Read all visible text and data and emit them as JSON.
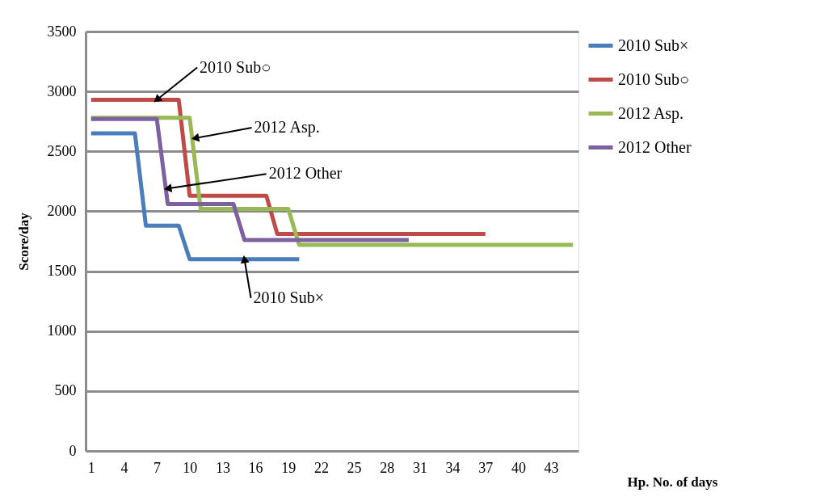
{
  "chart_data": {
    "type": "step",
    "xlabel": "Hp. No. of days",
    "ylabel": "Score/day",
    "xlim": [
      0.5,
      45.5
    ],
    "xticks": [
      1,
      4,
      7,
      10,
      13,
      16,
      19,
      22,
      25,
      28,
      31,
      34,
      37,
      40,
      43
    ],
    "ylim": [
      0,
      3500
    ],
    "yticks": [
      0,
      500,
      1000,
      1500,
      2000,
      2500,
      3000,
      3500
    ],
    "grid": "y",
    "legend": "right",
    "marker": "none",
    "line_style": "solid",
    "series": [
      {
        "name": "2010 Sub×",
        "color": "#4a7ebb",
        "x": [
          1,
          5,
          6,
          9,
          10,
          20
        ],
        "values": [
          2650,
          2650,
          1880,
          1880,
          1600,
          1600
        ]
      },
      {
        "name": "2010 Sub○",
        "color": "#be4b48",
        "x": [
          1,
          9,
          10,
          17,
          18,
          37
        ],
        "values": [
          2930,
          2930,
          2130,
          2130,
          1810,
          1810
        ]
      },
      {
        "name": "2012 Asp.",
        "color": "#98b954",
        "x": [
          1,
          10,
          11,
          19,
          20,
          45
        ],
        "values": [
          2780,
          2780,
          2020,
          2020,
          1720,
          1720
        ]
      },
      {
        "name": "2012 Other",
        "color": "#7d60a0",
        "x": [
          1,
          7,
          8,
          14,
          15,
          30
        ],
        "values": [
          2770,
          2770,
          2060,
          2060,
          1760,
          1760
        ]
      }
    ],
    "annotations": [
      {
        "text": "2010 Sub○",
        "x": 7,
        "y": 2930
      },
      {
        "text": "2012 Asp.",
        "x": 10.5,
        "y": 2610
      },
      {
        "text": "2012 Other",
        "x": 8,
        "y": 2190
      },
      {
        "text": "2010 Sub×",
        "x": 15,
        "y": 1600
      }
    ]
  }
}
